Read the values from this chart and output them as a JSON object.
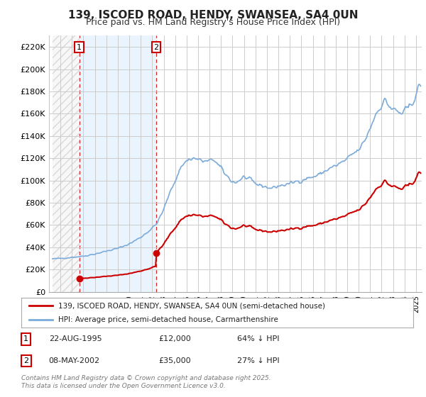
{
  "title": "139, ISCOED ROAD, HENDY, SWANSEA, SA4 0UN",
  "subtitle": "Price paid vs. HM Land Registry's House Price Index (HPI)",
  "ylim": [
    0,
    230000
  ],
  "yticks": [
    0,
    20000,
    40000,
    60000,
    80000,
    100000,
    120000,
    140000,
    160000,
    180000,
    200000,
    220000
  ],
  "ytick_labels": [
    "£0",
    "£20K",
    "£40K",
    "£60K",
    "£80K",
    "£100K",
    "£120K",
    "£140K",
    "£160K",
    "£180K",
    "£200K",
    "£220K"
  ],
  "xlim_start": 1993.3,
  "xlim_end": 2025.5,
  "xtick_years": [
    1993,
    1994,
    1995,
    1996,
    1997,
    1998,
    1999,
    2000,
    2001,
    2002,
    2003,
    2004,
    2005,
    2006,
    2007,
    2008,
    2009,
    2010,
    2011,
    2012,
    2013,
    2014,
    2015,
    2016,
    2017,
    2018,
    2019,
    2020,
    2021,
    2022,
    2023,
    2024,
    2025
  ],
  "sale1_x": 1995.646,
  "sale1_y": 12000,
  "sale2_x": 2002.356,
  "sale2_y": 35000,
  "price_paid_color": "#cc0000",
  "hpi_color": "#7aabdb",
  "hpi_fill_color": "#ddeeff",
  "annotation1": {
    "label": "1",
    "date": "22-AUG-1995",
    "price": "£12,000",
    "pct": "64% ↓ HPI"
  },
  "annotation2": {
    "label": "2",
    "date": "08-MAY-2002",
    "price": "£35,000",
    "pct": "27% ↓ HPI"
  },
  "legend_line1": "139, ISCOED ROAD, HENDY, SWANSEA, SA4 0UN (semi-detached house)",
  "legend_line2": "HPI: Average price, semi-detached house, Carmarthenshire",
  "footnote": "Contains HM Land Registry data © Crown copyright and database right 2025.\nThis data is licensed under the Open Government Licence v3.0.",
  "background_color": "#ffffff",
  "grid_color": "#cccccc",
  "title_fontsize": 11,
  "subtitle_fontsize": 9
}
